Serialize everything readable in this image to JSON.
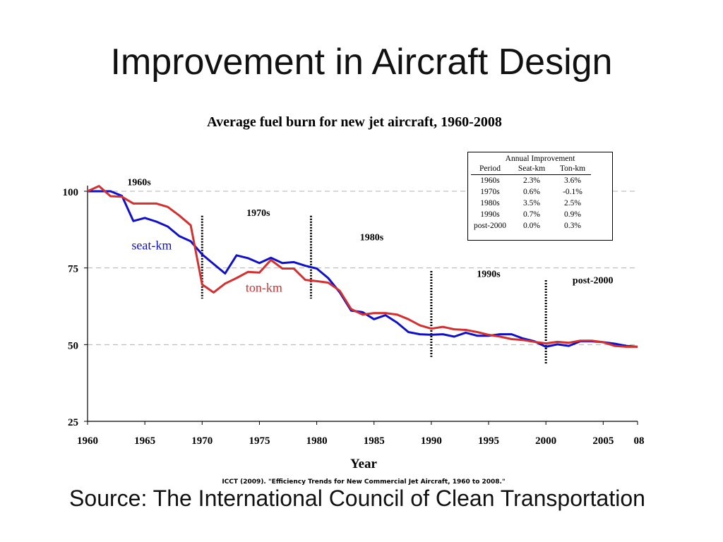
{
  "slide": {
    "title": "Improvement in Aircraft Design",
    "source": "Source: The International Council of Clean Transportation"
  },
  "citation": "ICCT (2009).  \"Efficiency Trends for New  Commercial Jet Aircraft, 1960 to 2008.\"",
  "annual_improvement": {
    "caption": "Annual Improvement",
    "headers": [
      "Period",
      "Seat-km",
      "Ton-km"
    ],
    "rows": [
      [
        "1960s",
        "2.3%",
        "3.6%"
      ],
      [
        "1970s",
        "0.6%",
        "-0.1%"
      ],
      [
        "1980s",
        "3.5%",
        "2.5%"
      ],
      [
        "1990s",
        "0.7%",
        "0.9%"
      ],
      [
        "post-2000",
        "0.0%",
        "0.3%"
      ]
    ]
  },
  "colors": {
    "seat_km": "#1010c8",
    "ton_km": "#d33030"
  },
  "chart_data": {
    "type": "line",
    "title": "Average fuel burn for new jet aircraft, 1960-2008",
    "xlabel": "Year",
    "ylabel": "",
    "xlim": [
      1960,
      2008
    ],
    "ylim": [
      25,
      100
    ],
    "x_ticks": [
      "1960",
      "1965",
      "1970",
      "1975",
      "1980",
      "1985",
      "1990",
      "1995",
      "2000",
      "2005",
      "08"
    ],
    "y_ticks": [
      "100",
      "75",
      "50",
      "25"
    ],
    "grid": "horizontal dashed at 50, 75, 100",
    "periods": [
      {
        "label": "1960s",
        "x": 1964.5,
        "y": 102
      },
      {
        "label": "1970s",
        "x": 1974.9,
        "y": 92
      },
      {
        "label": "1980s",
        "x": 1984.8,
        "y": 84
      },
      {
        "label": "1990s",
        "x": 1995,
        "y": 72
      },
      {
        "label": "post-2000",
        "x": 2004.1,
        "y": 70
      }
    ],
    "period_dividers": [
      {
        "x": 1970,
        "y_range": [
          65,
          92
        ]
      },
      {
        "x": 1979.5,
        "y_range": [
          65,
          92
        ]
      },
      {
        "x": 1990,
        "y_range": [
          46,
          74
        ]
      },
      {
        "x": 2000,
        "y_range": [
          43.5,
          71
        ]
      }
    ],
    "x": [
      1960,
      1961,
      1962,
      1963,
      1964,
      1965,
      1966,
      1967,
      1968,
      1969,
      1970,
      1971,
      1972,
      1973,
      1974,
      1975,
      1976,
      1977,
      1978,
      1979,
      1980,
      1981,
      1982,
      1983,
      1984,
      1985,
      1986,
      1987,
      1988,
      1989,
      1990,
      1991,
      1992,
      1993,
      1994,
      1995,
      1996,
      1997,
      1998,
      1999,
      2000,
      2001,
      2002,
      2003,
      2004,
      2005,
      2006,
      2007,
      2008
    ],
    "series": [
      {
        "name": "seat-km",
        "label_pos": {
          "x": 1965.6,
          "y": 81
        },
        "values": [
          100,
          100,
          100,
          98.5,
          90.3,
          91.3,
          90.1,
          88.5,
          85.4,
          83.7,
          79.4,
          76.3,
          73.2,
          79.1,
          78.2,
          76.6,
          78.3,
          76.6,
          76.9,
          75.7,
          74.8,
          71.7,
          67.1,
          61.1,
          60.6,
          58.3,
          59.6,
          57.2,
          54.1,
          53.4,
          53.2,
          53.4,
          52.6,
          53.9,
          52.9,
          52.9,
          53.4,
          53.4,
          52.0,
          51.1,
          49.3,
          50.1,
          49.6,
          51.1,
          51.1,
          50.8,
          50.3,
          49.6,
          49.3
        ]
      },
      {
        "name": "ton-km",
        "label_pos": {
          "x": 1975.4,
          "y": 67.2
        },
        "values": [
          100,
          101.7,
          98.4,
          98.2,
          96.0,
          96.0,
          96.0,
          94.9,
          92.1,
          88.9,
          69.6,
          67.0,
          69.9,
          71.7,
          73.7,
          73.5,
          77.6,
          74.8,
          74.8,
          71.1,
          70.7,
          70.2,
          67.6,
          61.6,
          59.8,
          60.3,
          60.3,
          59.8,
          58.3,
          56.3,
          55.2,
          55.8,
          55.0,
          54.8,
          54.1,
          53.2,
          52.6,
          51.8,
          51.5,
          50.9,
          50.4,
          50.9,
          50.6,
          51.3,
          51.3,
          50.8,
          49.6,
          49.3,
          49.3
        ]
      }
    ]
  }
}
